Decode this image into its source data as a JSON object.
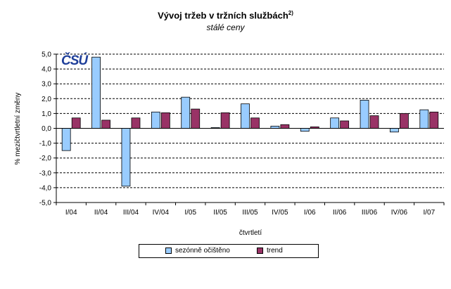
{
  "title": "Vývoj tržeb v tržních službách",
  "title_superscript": "2)",
  "subtitle": "stálé ceny",
  "logo_text": "ČSÚ",
  "colors": {
    "series1": "#99ccff",
    "series2": "#993366",
    "grid": "#000000"
  },
  "chart_data": {
    "type": "bar",
    "title": "Vývoj tržeb v tržních službách",
    "subtitle": "stálé ceny",
    "xlabel": "čtvrtletí",
    "ylabel": "% mezičtvrtletní změny",
    "ylim": [
      -5.0,
      5.0
    ],
    "ytick_step": 1.0,
    "yticks": [
      "5,0",
      "4,0",
      "3,0",
      "2,0",
      "1,0",
      "0,0",
      "-1,0",
      "-2,0",
      "-3,0",
      "-4,0",
      "-5,0"
    ],
    "grid": true,
    "legend_position": "bottom",
    "categories": [
      "I/04",
      "II/04",
      "III/04",
      "IV/04",
      "I/05",
      "II/05",
      "III/05",
      "IV/05",
      "I/06",
      "II/06",
      "III/06",
      "IV/06",
      "I/07"
    ],
    "series": [
      {
        "name": "sezónně očištěno",
        "values": [
          -1.5,
          4.8,
          -3.9,
          1.1,
          2.1,
          0.05,
          1.65,
          0.15,
          -0.2,
          0.7,
          1.9,
          -0.25,
          1.25
        ]
      },
      {
        "name": "trend",
        "values": [
          0.7,
          0.55,
          0.7,
          1.05,
          1.3,
          1.05,
          0.7,
          0.25,
          0.1,
          0.5,
          0.85,
          1.0,
          1.1
        ]
      }
    ]
  }
}
